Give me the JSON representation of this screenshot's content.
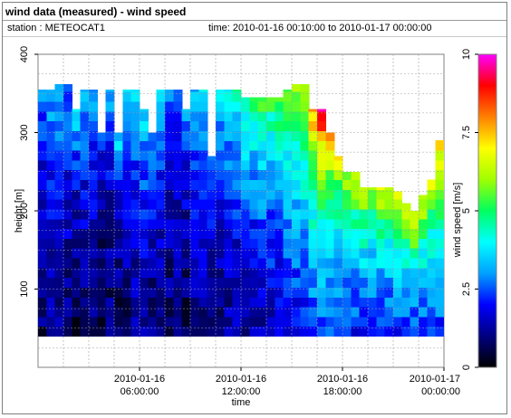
{
  "header": {
    "title": "wind data (measured) - wind speed",
    "station_text": "station : METEOCAT1",
    "time_text": "time: 2010-01-16 00:10:00 to 2010-01-17 00:00:00"
  },
  "chart_data": {
    "type": "heatmap",
    "title": "wind data (measured) - wind speed",
    "xlabel": "time",
    "ylabel": "height [m]",
    "xlim_hours": [
      0,
      24
    ],
    "ylim": [
      0,
      400
    ],
    "x_ticks": [
      {
        "hours": 6,
        "line1": "2010-01-16",
        "line2": "06:00:00"
      },
      {
        "hours": 12,
        "line1": "2010-01-16",
        "line2": "12:00:00"
      },
      {
        "hours": 18,
        "line1": "2010-01-16",
        "line2": "18:00:00"
      },
      {
        "hours": 24,
        "line1": "2010-01-17",
        "line2": "00:00:00"
      }
    ],
    "y_ticks": [
      100,
      200,
      300,
      400
    ],
    "grid": true,
    "colorbar": {
      "label": "wind speed [m/s]",
      "range": [
        0,
        10
      ],
      "ticks": [
        "0",
        "2.5",
        "5",
        "7.5",
        "10"
      ],
      "colors": [
        "#000000",
        "#000080",
        "#0000ff",
        "#00a0ff",
        "#00ffff",
        "#00ff60",
        "#a0ff00",
        "#ffff00",
        "#ff8000",
        "#ff0000",
        "#ff00ff"
      ]
    },
    "samples": {
      "hours": [
        0,
        0.5,
        1,
        1.5,
        2,
        2.5,
        3,
        3.5,
        4,
        4.5,
        5,
        5.5,
        6,
        6.5,
        7,
        7.5,
        8,
        8.5,
        9,
        9.5,
        10,
        10.5,
        11,
        11.5,
        12,
        12.5,
        13,
        13.5,
        14,
        14.5,
        15,
        15.5,
        16,
        16.5,
        17,
        17.5,
        18,
        18.5,
        19,
        19.5,
        20,
        20.5,
        21,
        21.5,
        22,
        22.5,
        23,
        23.5
      ],
      "top_height_m": [
        355,
        355,
        362,
        362,
        330,
        355,
        355,
        300,
        355,
        300,
        355,
        355,
        330,
        300,
        355,
        355,
        355,
        330,
        355,
        355,
        270,
        355,
        355,
        355,
        345,
        345,
        345,
        345,
        345,
        355,
        362,
        362,
        330,
        330,
        300,
        270,
        250,
        250,
        230,
        230,
        230,
        230,
        225,
        210,
        200,
        220,
        240,
        290
      ],
      "mean_speed_ms": [
        1.5,
        1.8,
        1.8,
        1.6,
        1.2,
        1.7,
        1.5,
        1.0,
        1.4,
        1.2,
        1.6,
        1.8,
        2.0,
        1.6,
        1.8,
        1.4,
        1.5,
        1.3,
        1.8,
        2.0,
        1.6,
        1.8,
        2.0,
        2.1,
        2.3,
        2.4,
        2.6,
        2.6,
        2.8,
        3.0,
        3.4,
        3.6,
        4.2,
        4.4,
        4.4,
        4.0,
        3.8,
        3.8,
        3.8,
        3.6,
        3.8,
        3.8,
        4.0,
        4.0,
        4.2,
        4.0,
        4.0,
        4.2
      ],
      "max_speed_ms": [
        2.5,
        3.0,
        3.0,
        2.6,
        3.5,
        2.8,
        2.8,
        2.2,
        2.8,
        3.6,
        3.0,
        3.2,
        3.4,
        3.0,
        3.0,
        2.8,
        2.6,
        2.8,
        3.0,
        3.2,
        3.0,
        3.4,
        3.8,
        4.0,
        4.5,
        4.5,
        4.8,
        4.8,
        5.0,
        5.2,
        5.8,
        6.0,
        7.0,
        8.5,
        6.8,
        6.0,
        5.6,
        6.0,
        5.8,
        5.5,
        6.2,
        6.0,
        6.0,
        6.2,
        6.5,
        6.0,
        6.2,
        6.8
      ]
    }
  }
}
